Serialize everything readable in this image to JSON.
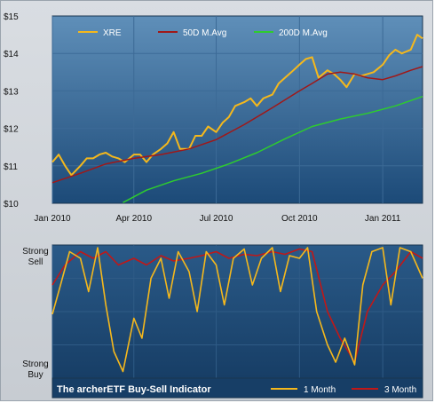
{
  "chart_data": [
    {
      "type": "line",
      "x_ticks": [
        "Jan 2010",
        "Apr 2010",
        "Jul 2010",
        "Oct 2010",
        "Jan 2011"
      ],
      "y_ticks": [
        "$10",
        "$11",
        "$12",
        "$13",
        "$14",
        "$15"
      ],
      "ylim": [
        10,
        15
      ],
      "xlim": [
        "2010-01-01",
        "2011-02-14"
      ],
      "grid": true,
      "legend_position": "top",
      "series": [
        {
          "name": "XRE",
          "color": "#f5b81c",
          "x": [
            "2010-01-01",
            "2010-01-08",
            "2010-01-15",
            "2010-01-22",
            "2010-02-01",
            "2010-02-08",
            "2010-02-15",
            "2010-02-22",
            "2010-03-01",
            "2010-03-08",
            "2010-03-15",
            "2010-03-22",
            "2010-04-01",
            "2010-04-08",
            "2010-04-15",
            "2010-04-22",
            "2010-05-01",
            "2010-05-08",
            "2010-05-15",
            "2010-05-22",
            "2010-06-01",
            "2010-06-08",
            "2010-06-15",
            "2010-06-22",
            "2010-07-01",
            "2010-07-08",
            "2010-07-15",
            "2010-07-22",
            "2010-08-01",
            "2010-08-08",
            "2010-08-15",
            "2010-08-22",
            "2010-09-01",
            "2010-09-08",
            "2010-09-15",
            "2010-09-22",
            "2010-10-01",
            "2010-10-08",
            "2010-10-15",
            "2010-10-22",
            "2010-11-01",
            "2010-11-08",
            "2010-11-15",
            "2010-11-22",
            "2010-12-01",
            "2010-12-08",
            "2010-12-15",
            "2010-12-22",
            "2011-01-01",
            "2011-01-08",
            "2011-01-15",
            "2011-01-22",
            "2011-02-01",
            "2011-02-08",
            "2011-02-14"
          ],
          "y": [
            11.1,
            11.3,
            11.0,
            10.75,
            11.0,
            11.2,
            11.2,
            11.3,
            11.35,
            11.25,
            11.2,
            11.1,
            11.3,
            11.3,
            11.1,
            11.3,
            11.45,
            11.6,
            11.9,
            11.45,
            11.45,
            11.8,
            11.8,
            12.05,
            11.9,
            12.15,
            12.3,
            12.6,
            12.7,
            12.8,
            12.6,
            12.8,
            12.9,
            13.2,
            13.35,
            13.5,
            13.7,
            13.85,
            13.9,
            13.35,
            13.55,
            13.45,
            13.3,
            13.1,
            13.45,
            13.4,
            13.45,
            13.5,
            13.7,
            13.95,
            14.1,
            14.0,
            14.1,
            14.5,
            14.4
          ]
        },
        {
          "name": "50D M.Avg",
          "color": "#a01818",
          "x": [
            "2010-01-01",
            "2010-02-01",
            "2010-03-01",
            "2010-04-01",
            "2010-05-01",
            "2010-06-01",
            "2010-07-01",
            "2010-08-01",
            "2010-09-01",
            "2010-10-01",
            "2010-10-15",
            "2010-11-01",
            "2010-11-15",
            "2010-12-01",
            "2010-12-15",
            "2011-01-01",
            "2011-01-15",
            "2011-02-01",
            "2011-02-14"
          ],
          "y": [
            10.55,
            10.8,
            11.05,
            11.2,
            11.3,
            11.45,
            11.7,
            12.1,
            12.55,
            13.0,
            13.2,
            13.45,
            13.5,
            13.45,
            13.35,
            13.3,
            13.4,
            13.55,
            13.65
          ]
        },
        {
          "name": "200D M.Avg",
          "color": "#2ecc2e",
          "x": [
            "2010-03-20",
            "2010-04-15",
            "2010-05-15",
            "2010-06-15",
            "2010-07-15",
            "2010-08-15",
            "2010-09-15",
            "2010-10-15",
            "2010-11-15",
            "2010-12-15",
            "2011-01-15",
            "2011-02-14"
          ],
          "y": [
            10.02,
            10.35,
            10.6,
            10.8,
            11.05,
            11.35,
            11.72,
            12.05,
            12.25,
            12.4,
            12.6,
            12.85
          ]
        }
      ]
    },
    {
      "type": "line",
      "title": "The archerETF Buy-Sell Indicator",
      "y_labels": {
        "top": [
          "Strong",
          "Sell"
        ],
        "bottom": [
          "Strong",
          "Buy"
        ]
      },
      "ylim": [
        0,
        1
      ],
      "xlim": [
        "2010-01-01",
        "2011-02-14"
      ],
      "grid": true,
      "legend_position": "bottom-right",
      "series": [
        {
          "name": "1 Month",
          "color": "#f5b81c",
          "x": [
            "2010-01-01",
            "2010-01-10",
            "2010-01-20",
            "2010-02-01",
            "2010-02-10",
            "2010-02-20",
            "2010-03-01",
            "2010-03-10",
            "2010-03-20",
            "2010-04-01",
            "2010-04-10",
            "2010-04-20",
            "2010-05-01",
            "2010-05-10",
            "2010-05-20",
            "2010-06-01",
            "2010-06-10",
            "2010-06-20",
            "2010-07-01",
            "2010-07-10",
            "2010-07-20",
            "2010-08-01",
            "2010-08-10",
            "2010-08-20",
            "2010-09-01",
            "2010-09-10",
            "2010-09-20",
            "2010-10-01",
            "2010-10-10",
            "2010-10-20",
            "2010-11-01",
            "2010-11-10",
            "2010-11-20",
            "2010-12-01",
            "2010-12-10",
            "2010-12-20",
            "2011-01-01",
            "2011-01-10",
            "2011-01-20",
            "2011-02-01",
            "2011-02-14"
          ],
          "y": [
            0.48,
            0.7,
            0.95,
            0.9,
            0.65,
            0.98,
            0.55,
            0.2,
            0.05,
            0.45,
            0.3,
            0.75,
            0.9,
            0.6,
            0.95,
            0.8,
            0.5,
            0.95,
            0.85,
            0.55,
            0.9,
            0.97,
            0.7,
            0.9,
            0.98,
            0.65,
            0.92,
            0.9,
            0.98,
            0.5,
            0.25,
            0.12,
            0.3,
            0.1,
            0.7,
            0.95,
            0.98,
            0.55,
            0.98,
            0.95,
            0.75
          ]
        },
        {
          "name": "3 Month",
          "color": "#c01818",
          "x": [
            "2010-01-01",
            "2010-01-15",
            "2010-02-01",
            "2010-02-15",
            "2010-03-01",
            "2010-03-15",
            "2010-04-01",
            "2010-04-15",
            "2010-05-01",
            "2010-05-15",
            "2010-06-01",
            "2010-06-15",
            "2010-07-01",
            "2010-07-15",
            "2010-08-01",
            "2010-08-15",
            "2010-09-01",
            "2010-09-15",
            "2010-10-01",
            "2010-10-15",
            "2010-11-01",
            "2010-11-15",
            "2010-12-01",
            "2010-12-15",
            "2011-01-01",
            "2011-01-15",
            "2011-02-01",
            "2011-02-14"
          ],
          "y": [
            0.7,
            0.85,
            0.95,
            0.9,
            0.95,
            0.85,
            0.9,
            0.85,
            0.92,
            0.88,
            0.9,
            0.92,
            0.95,
            0.9,
            0.93,
            0.92,
            0.95,
            0.93,
            0.97,
            0.95,
            0.5,
            0.3,
            0.12,
            0.5,
            0.7,
            0.8,
            0.95,
            0.9
          ]
        }
      ]
    }
  ]
}
